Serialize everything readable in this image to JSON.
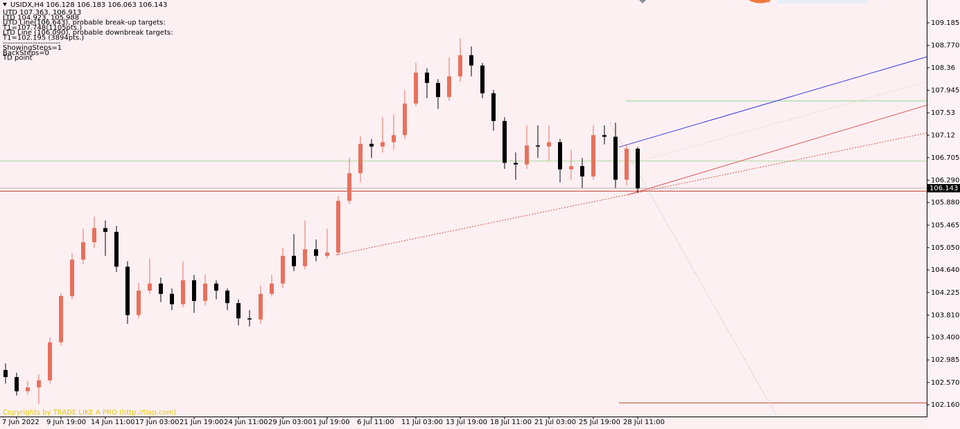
{
  "chart_data": {
    "type": "candlestick",
    "title": "USIDX,H4  106.128 106.183 106.063 106.143",
    "annotations": [
      "UTD 107.363, 106.913",
      "LTD 104.923, 105.988",
      "UTD Line(106.643), probable break-up targets:",
      "T1=107.748(1105pts.)",
      "LTD Line (106.090), probable downbreak targets:",
      "T1=102.195 (3894pts.)",
      "-----------------------",
      "ShowingSteps=1",
      "BackSteps=0",
      "TD point"
    ],
    "copyright": "Copyrights by TRADE LIKE A PRO (http://tlap.com)",
    "categories": [
      null,
      "7 Jun 2022",
      null,
      null,
      null,
      "9 Jun 19:00",
      null,
      null,
      null,
      "14 Jun 11:00",
      null,
      null,
      null,
      "17 Jun 03:00",
      null,
      null,
      null,
      "21 Jun 19:00",
      null,
      null,
      null,
      "24 Jun 11:00",
      null,
      null,
      null,
      "29 Jun 03:00",
      null,
      null,
      null,
      "1 Jul 19:00",
      null,
      null,
      null,
      "6 Jul 11:00",
      null,
      null,
      null,
      "11 Jul 03:00",
      null,
      null,
      null,
      "13 Jul 19:00",
      null,
      null,
      null,
      "18 Jul 11:00",
      null,
      null,
      null,
      "21 Jul 03:00",
      null,
      null,
      null,
      "25 Jul 19:00",
      null,
      null,
      null,
      "28 Jul 11:00"
    ],
    "open": [
      102.8,
      102.67,
      102.41,
      102.48,
      102.61,
      103.31,
      104.16,
      104.83,
      105.15,
      105.41,
      105.34,
      104.7,
      103.81,
      104.26,
      104.39,
      104.2,
      104.01,
      104.45,
      104.07,
      104.39,
      104.26,
      104.03,
      103.75,
      103.73,
      104.2,
      104.39,
      104.9,
      104.71,
      105.02,
      104.9,
      104.96,
      105.91,
      106.42,
      106.96,
      106.91,
      106.99,
      107.12,
      107.7,
      108.27,
      108.08,
      107.82,
      108.2,
      108.59,
      108.4,
      107.89,
      107.38,
      106.61,
      106.58,
      106.93,
      106.91,
      106.99,
      106.49,
      106.55,
      106.36,
      107.12,
      107.09,
      106.3,
      106.87
    ],
    "high": [
      102.92,
      102.75,
      102.6,
      102.72,
      103.4,
      104.22,
      104.95,
      105.4,
      105.62,
      105.55,
      105.45,
      104.8,
      104.4,
      104.85,
      104.5,
      104.3,
      104.8,
      104.55,
      104.55,
      104.45,
      104.3,
      104.1,
      103.9,
      104.35,
      104.55,
      105.05,
      105.3,
      105.55,
      105.2,
      105.4,
      106.0,
      106.7,
      107.1,
      107.05,
      107.45,
      107.5,
      107.95,
      108.45,
      108.35,
      108.15,
      108.55,
      108.9,
      108.75,
      108.45,
      107.95,
      107.45,
      106.8,
      107.3,
      107.3,
      107.3,
      107.05,
      106.85,
      106.7,
      107.3,
      107.3,
      107.35,
      106.95,
      106.9
    ],
    "low": [
      102.55,
      102.33,
      102.35,
      102.18,
      102.55,
      103.25,
      104.1,
      104.75,
      105.05,
      104.9,
      104.6,
      103.65,
      103.75,
      104.2,
      104.05,
      103.9,
      103.95,
      103.85,
      103.98,
      104.1,
      103.9,
      103.62,
      103.6,
      103.65,
      104.15,
      104.3,
      104.62,
      104.65,
      104.8,
      104.85,
      104.9,
      105.85,
      106.25,
      106.7,
      106.8,
      106.85,
      107.05,
      107.65,
      107.8,
      107.6,
      107.75,
      108.1,
      108.2,
      107.8,
      107.2,
      106.5,
      106.3,
      106.5,
      106.7,
      106.65,
      106.25,
      106.3,
      106.15,
      106.3,
      106.95,
      106.15,
      106.2,
      106.06
    ],
    "close": [
      102.67,
      102.41,
      102.48,
      102.61,
      103.31,
      104.16,
      104.83,
      105.15,
      105.41,
      105.34,
      104.7,
      103.81,
      104.26,
      104.39,
      104.2,
      104.01,
      104.45,
      104.07,
      104.39,
      104.26,
      104.03,
      103.75,
      103.73,
      104.2,
      104.39,
      104.9,
      104.71,
      105.02,
      104.9,
      104.96,
      105.91,
      106.42,
      106.96,
      106.91,
      106.99,
      107.12,
      107.7,
      108.27,
      108.08,
      107.82,
      108.2,
      108.59,
      108.4,
      107.89,
      107.38,
      106.61,
      106.58,
      106.93,
      106.91,
      106.99,
      106.49,
      106.55,
      106.36,
      107.12,
      107.09,
      106.3,
      106.87,
      106.14
    ],
    "up_color": "#e8705c",
    "down_color": "#000000",
    "levels": [
      {
        "value": 107.748,
        "color": "#8fd18a"
      },
      {
        "value": 106.643,
        "color": "#a9d8a0"
      },
      {
        "value": 106.143,
        "color": "#b8aeb0"
      },
      {
        "value": 106.09,
        "color": "#c0392b"
      },
      {
        "value": 102.195,
        "color": "#c0392b"
      }
    ],
    "trendlines": [
      {
        "values": [
          106.9,
          108.56
        ],
        "color": "#3a3ae0",
        "dashed": false
      },
      {
        "values": [
          106.02,
          107.67
        ],
        "color": "#d9534f",
        "dashed": false
      },
      {
        "values": [
          104.92,
          107.16
        ],
        "color": "#d9534f",
        "dashed": true
      },
      {
        "values": [
          107.34,
          101.97
        ],
        "color": "#c9c9a0",
        "dashed": true
      },
      {
        "values": [
          106.58,
          108.1
        ],
        "color": "#e8d0c8",
        "dashed": true
      }
    ],
    "last_price": {
      "value": 106.143,
      "label": "106.143"
    },
    "ylim": [
      101.944,
      109.605
    ],
    "yticks": [
      109.185,
      {
        "value": 108.77,
        "label": "108.770"
      },
      108.36,
      107.945,
      107.53,
      107.12,
      106.705,
      {
        "value": 106.29,
        "label": "106.290"
      },
      {
        "value": 105.88,
        "label": "105.880"
      },
      105.465,
      {
        "value": 105.05,
        "label": "105.050"
      },
      {
        "value": 104.64,
        "label": "104.640"
      },
      104.225,
      {
        "value": 103.81,
        "label": "103.810"
      },
      {
        "value": 103.4,
        "label": "103.400"
      },
      102.985,
      {
        "value": 102.57,
        "label": "102.570"
      },
      {
        "value": 102.16,
        "label": "102.160"
      }
    ]
  }
}
